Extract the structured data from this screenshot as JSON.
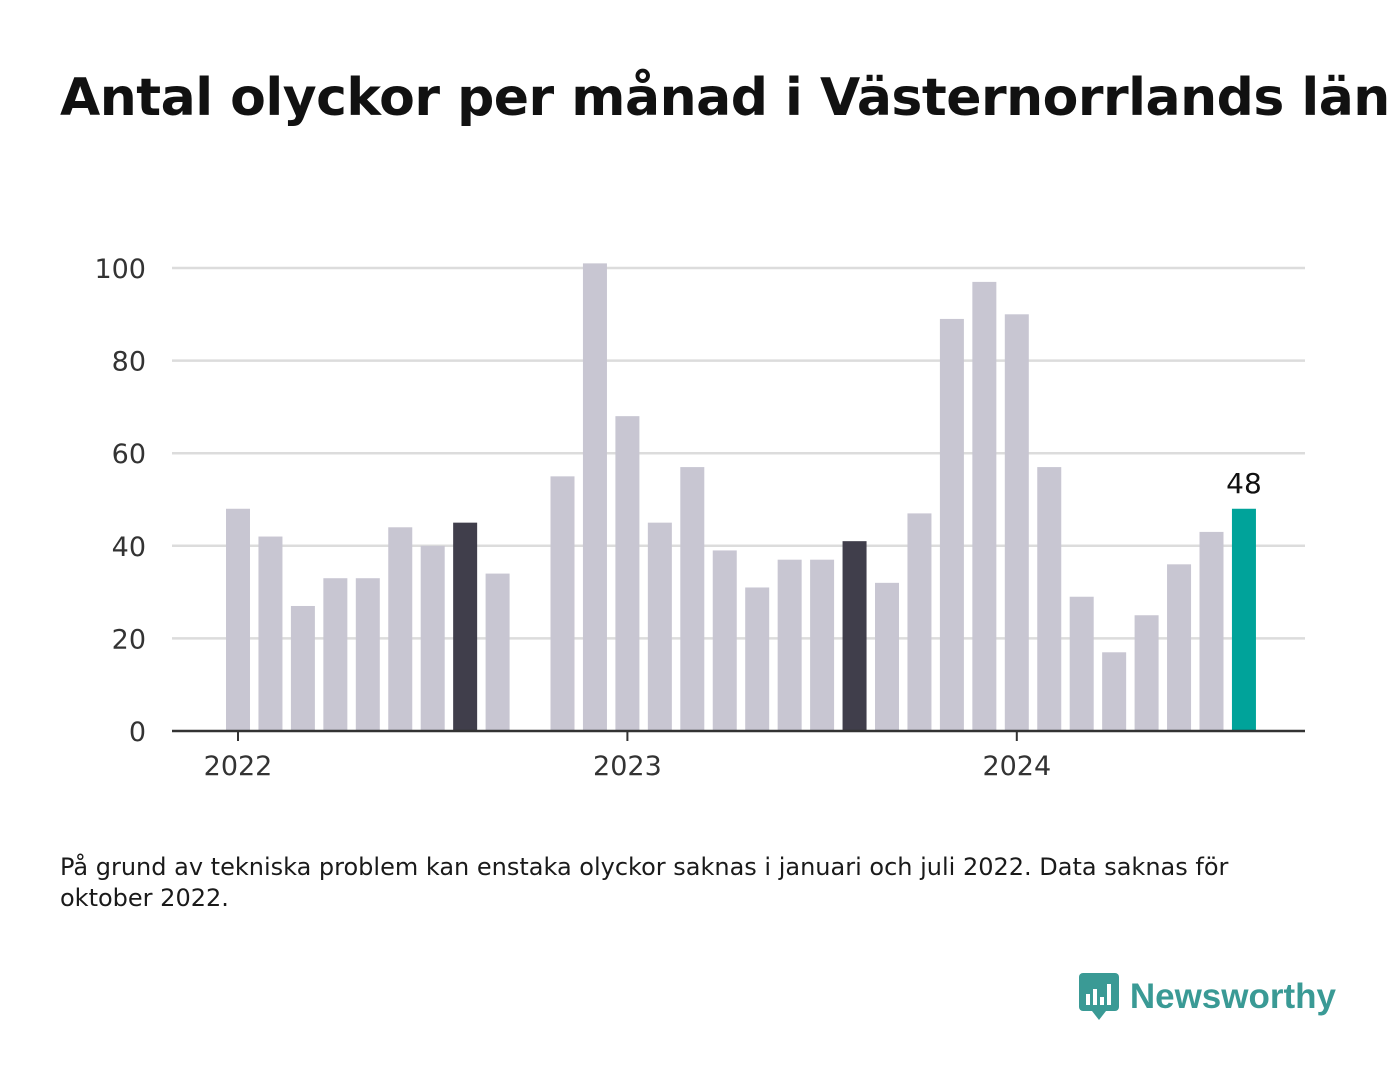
{
  "header": {
    "title": "Antal olyckor per månad i Västernorrlands län"
  },
  "chart_data": {
    "type": "bar",
    "categories": [
      "2022-01",
      "2022-02",
      "2022-03",
      "2022-04",
      "2022-05",
      "2022-06",
      "2022-07",
      "2022-08",
      "2022-09",
      "2022-10",
      "2022-11",
      "2022-12",
      "2023-01",
      "2023-02",
      "2023-03",
      "2023-04",
      "2023-05",
      "2023-06",
      "2023-07",
      "2023-08",
      "2023-09",
      "2023-10",
      "2023-11",
      "2023-12",
      "2024-01",
      "2024-02",
      "2024-03",
      "2024-04",
      "2024-05",
      "2024-06",
      "2024-07",
      "2024-08"
    ],
    "values": [
      48,
      42,
      27,
      33,
      33,
      44,
      40,
      45,
      34,
      null,
      55,
      101,
      68,
      45,
      57,
      39,
      31,
      37,
      37,
      41,
      32,
      47,
      89,
      97,
      90,
      57,
      29,
      17,
      25,
      36,
      43,
      48
    ],
    "highlighted_dark": [
      "2022-08",
      "2023-08"
    ],
    "highlighted_latest": "2024-08",
    "colors": {
      "bar": "#c8c6d2",
      "dark": "#403e4b",
      "latest": "#00a39a",
      "grid": "#dcdcdc",
      "axis": "#333333"
    },
    "ylim": [
      0,
      100
    ],
    "yticks": [
      0,
      20,
      40,
      60,
      80,
      100
    ],
    "xticks": [
      {
        "label": "2022",
        "category": "2022-01"
      },
      {
        "label": "2023",
        "category": "2023-01"
      },
      {
        "label": "2024",
        "category": "2024-01"
      }
    ],
    "data_label": {
      "category": "2024-08",
      "text": "48"
    },
    "grid": true
  },
  "footer": {
    "note": "På grund av tekniska problem kan enstaka olyckor saknas i januari och juli 2022. Data saknas för oktober 2022.",
    "brand": "Newsworthy",
    "brand_icon": "newsworthy-logo-icon"
  }
}
